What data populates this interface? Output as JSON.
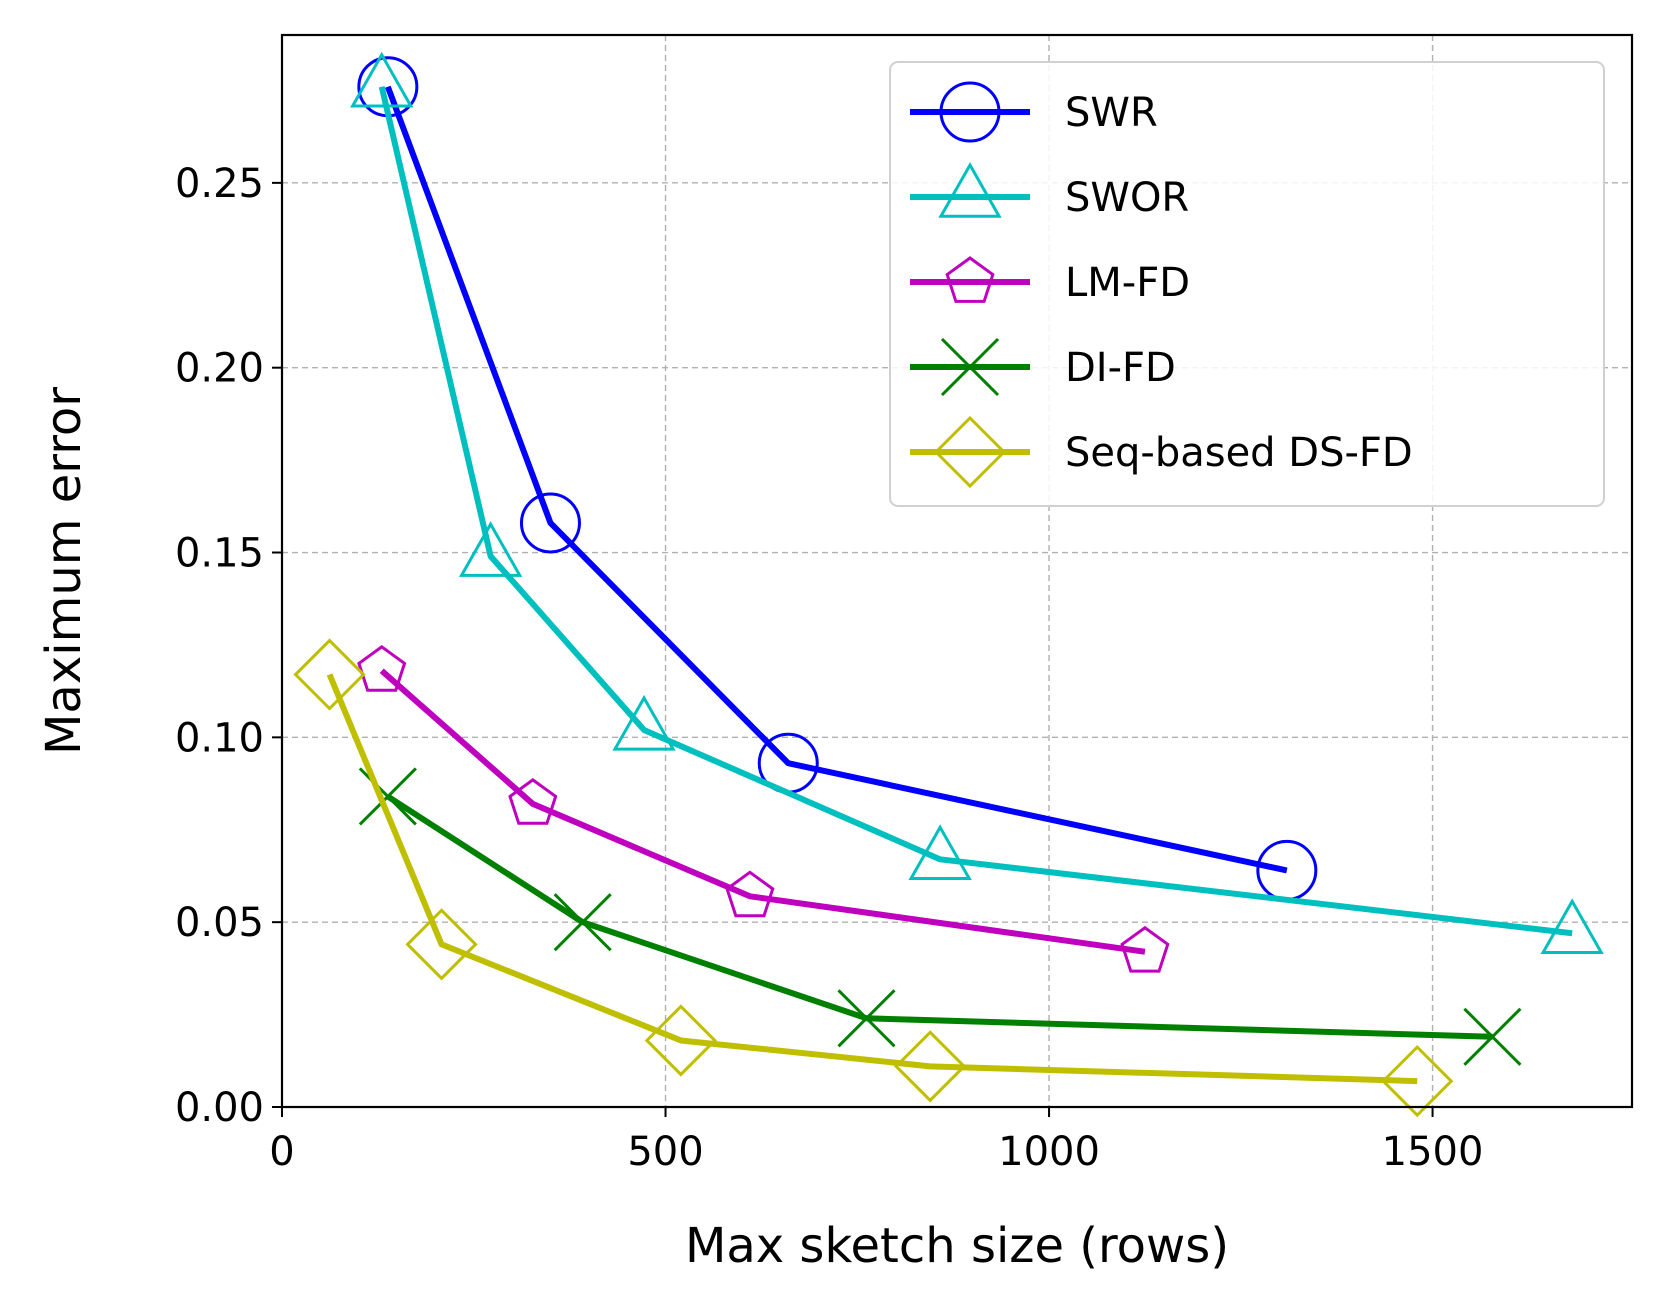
{
  "chart_data": {
    "type": "line",
    "title": "",
    "xlabel": "Max sketch size (rows)",
    "ylabel": "Maximum error",
    "xlim": [
      0,
      1760
    ],
    "ylim": [
      0,
      0.29
    ],
    "grid": true,
    "legend_position": "top-right",
    "x_ticks": [
      0,
      500,
      1000,
      1500
    ],
    "x_tick_labels": [
      "0",
      "500",
      "1000",
      "1500"
    ],
    "y_ticks": [
      0.0,
      0.05,
      0.1,
      0.15,
      0.2,
      0.25
    ],
    "y_tick_labels": [
      "0.00",
      "0.05",
      "0.10",
      "0.15",
      "0.20",
      "0.25"
    ],
    "series": [
      {
        "name": "SWR",
        "color": "#0000ff",
        "marker": "circle",
        "x": [
          138,
          350,
          660,
          1310
        ],
        "y": [
          0.276,
          0.158,
          0.093,
          0.064
        ]
      },
      {
        "name": "SWOR",
        "color": "#00bfbf",
        "marker": "triangle",
        "x": [
          130,
          272,
          472,
          858,
          1682
        ],
        "y": [
          0.276,
          0.149,
          0.102,
          0.067,
          0.047
        ]
      },
      {
        "name": "LM-FD",
        "color": "#bf00bf",
        "marker": "pentagon",
        "x": [
          130,
          327,
          610,
          1125
        ],
        "y": [
          0.118,
          0.082,
          0.057,
          0.042
        ]
      },
      {
        "name": "DI-FD",
        "color": "#008000",
        "marker": "x",
        "x": [
          138,
          392,
          762,
          1578
        ],
        "y": [
          0.084,
          0.05,
          0.024,
          0.019
        ]
      },
      {
        "name": "Seq-based DS-FD",
        "color": "#bfbf00",
        "marker": "diamond",
        "x": [
          62,
          208,
          520,
          845,
          1480
        ],
        "y": [
          0.117,
          0.044,
          0.018,
          0.011,
          0.007
        ]
      }
    ]
  }
}
